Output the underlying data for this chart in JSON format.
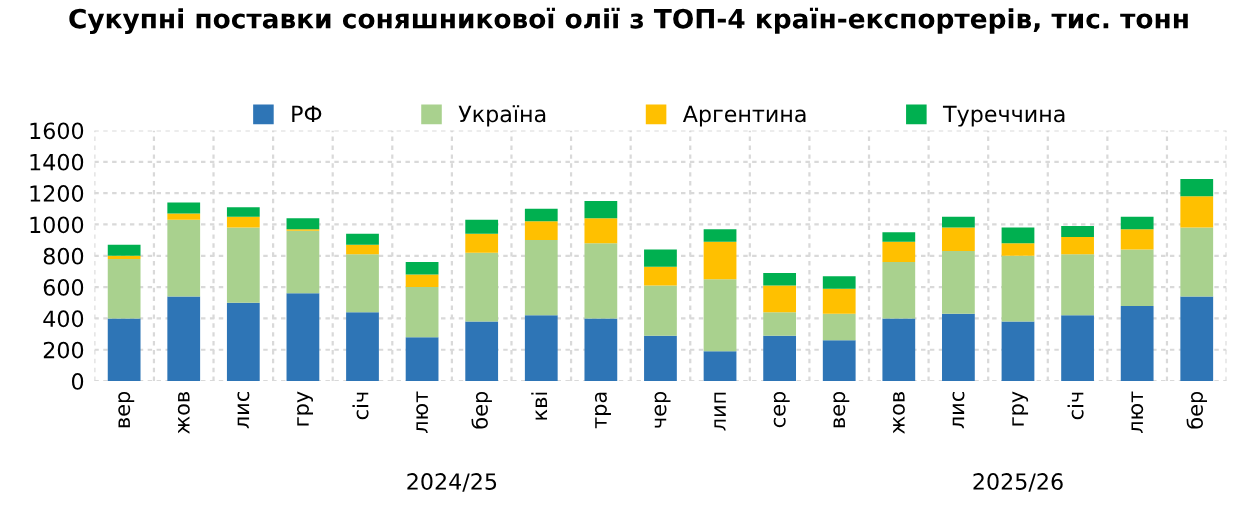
{
  "chart_data": {
    "type": "bar",
    "stacked": true,
    "title": "Сукупні поставки соняшникової олії з ТОП-4 країн-експортерів, тис. тонн",
    "categories": [
      "вер",
      "жов",
      "лис",
      "гру",
      "січ",
      "лют",
      "бер",
      "кві",
      "тра",
      "чер",
      "лип",
      "сер",
      "вер",
      "жов",
      "лис",
      "гру",
      "січ",
      "лют",
      "бер"
    ],
    "series": [
      {
        "name": "РФ",
        "color": "#2e75b6",
        "values": [
          400,
          540,
          500,
          560,
          440,
          280,
          380,
          420,
          400,
          290,
          190,
          290,
          260,
          400,
          430,
          380,
          420,
          480,
          540
        ]
      },
      {
        "name": "Україна",
        "color": "#a9d18e",
        "values": [
          380,
          490,
          480,
          400,
          370,
          320,
          440,
          480,
          480,
          320,
          460,
          150,
          170,
          360,
          400,
          420,
          390,
          360,
          440
        ]
      },
      {
        "name": "Аргентина",
        "color": "#ffc000",
        "values": [
          20,
          40,
          70,
          10,
          60,
          80,
          120,
          120,
          160,
          120,
          240,
          170,
          160,
          130,
          150,
          80,
          110,
          130,
          200
        ]
      },
      {
        "name": "Туреччина",
        "color": "#00b050",
        "values": [
          70,
          70,
          60,
          70,
          70,
          80,
          90,
          80,
          110,
          110,
          80,
          80,
          80,
          60,
          70,
          100,
          70,
          80,
          110
        ]
      }
    ],
    "ylim": [
      0,
      1600
    ],
    "yticks": [
      0,
      200,
      400,
      600,
      800,
      1000,
      1200,
      1400,
      1600
    ],
    "grid": true,
    "legend": "top",
    "annotations": [
      "2024/25",
      "2025/26"
    ]
  }
}
